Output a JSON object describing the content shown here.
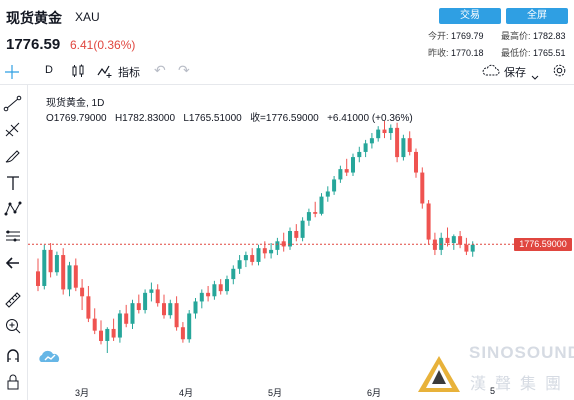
{
  "header": {
    "title": "现货黄金",
    "symbol": "XAU",
    "price": "1776.59",
    "change": "6.41(0.36%)",
    "buttons": {
      "trade": "交易",
      "fullscreen": "全屏"
    },
    "stats": {
      "today_open_label": "今开:",
      "today_open": "1769.79",
      "high_label": "最高价:",
      "high": "1782.83",
      "prev_close_label": "昨收:",
      "prev_close": "1770.18",
      "low_label": "最低价:",
      "low": "1765.51"
    }
  },
  "toolbar": {
    "interval": "D",
    "indicators_label": "指标",
    "save_label": "保存"
  },
  "chart": {
    "legend_name": "现货黄金, 1D",
    "legend_ohlc": "O1769.79000   H1782.83000   L1765.51000   收=1776.59000   +6.41000 (+0.36%)",
    "price_tag": "1776.59000",
    "x_labels": [
      "3月",
      "4月",
      "5月",
      "6月",
      "5"
    ],
    "watermark_en": "SINOSOUND",
    "watermark_cn": "漢聲集團"
  },
  "colors": {
    "up": "#26a69a",
    "down": "#ef5350",
    "accent": "#2f9fe3"
  },
  "chart_data": {
    "type": "candlestick",
    "close_last": 1776.59,
    "candles": [
      [
        1745,
        1760,
        1722,
        1728
      ],
      [
        1728,
        1776,
        1724,
        1770
      ],
      [
        1770,
        1778,
        1738,
        1744
      ],
      [
        1744,
        1768,
        1740,
        1764
      ],
      [
        1764,
        1772,
        1718,
        1724
      ],
      [
        1724,
        1756,
        1716,
        1752
      ],
      [
        1752,
        1760,
        1722,
        1726
      ],
      [
        1726,
        1736,
        1700,
        1716
      ],
      [
        1716,
        1728,
        1686,
        1690
      ],
      [
        1690,
        1702,
        1672,
        1676
      ],
      [
        1676,
        1688,
        1660,
        1664
      ],
      [
        1664,
        1680,
        1650,
        1678
      ],
      [
        1678,
        1690,
        1664,
        1668
      ],
      [
        1668,
        1700,
        1662,
        1696
      ],
      [
        1696,
        1706,
        1680,
        1684
      ],
      [
        1684,
        1712,
        1678,
        1708
      ],
      [
        1708,
        1718,
        1696,
        1700
      ],
      [
        1700,
        1724,
        1696,
        1720
      ],
      [
        1720,
        1732,
        1710,
        1724
      ],
      [
        1724,
        1730,
        1704,
        1708
      ],
      [
        1708,
        1718,
        1690,
        1694
      ],
      [
        1694,
        1712,
        1690,
        1708
      ],
      [
        1708,
        1716,
        1676,
        1680
      ],
      [
        1680,
        1686,
        1662,
        1666
      ],
      [
        1666,
        1700,
        1662,
        1696
      ],
      [
        1696,
        1714,
        1690,
        1710
      ],
      [
        1710,
        1724,
        1702,
        1720
      ],
      [
        1720,
        1728,
        1710,
        1716
      ],
      [
        1716,
        1734,
        1712,
        1730
      ],
      [
        1730,
        1736,
        1718,
        1722
      ],
      [
        1722,
        1740,
        1718,
        1736
      ],
      [
        1736,
        1752,
        1730,
        1748
      ],
      [
        1748,
        1764,
        1742,
        1758
      ],
      [
        1758,
        1768,
        1750,
        1764
      ],
      [
        1764,
        1772,
        1752,
        1756
      ],
      [
        1756,
        1776,
        1752,
        1772
      ],
      [
        1772,
        1780,
        1760,
        1766
      ],
      [
        1766,
        1778,
        1760,
        1770
      ],
      [
        1770,
        1784,
        1764,
        1780
      ],
      [
        1780,
        1790,
        1768,
        1774
      ],
      [
        1774,
        1796,
        1770,
        1792
      ],
      [
        1792,
        1800,
        1780,
        1784
      ],
      [
        1784,
        1808,
        1780,
        1804
      ],
      [
        1804,
        1818,
        1798,
        1814
      ],
      [
        1814,
        1826,
        1808,
        1812
      ],
      [
        1812,
        1836,
        1810,
        1832
      ],
      [
        1832,
        1844,
        1826,
        1838
      ],
      [
        1838,
        1856,
        1834,
        1852
      ],
      [
        1852,
        1868,
        1848,
        1864
      ],
      [
        1864,
        1876,
        1856,
        1860
      ],
      [
        1860,
        1882,
        1856,
        1878
      ],
      [
        1878,
        1890,
        1872,
        1884
      ],
      [
        1884,
        1898,
        1878,
        1894
      ],
      [
        1894,
        1906,
        1888,
        1900
      ],
      [
        1900,
        1914,
        1896,
        1910
      ],
      [
        1910,
        1920,
        1900,
        1906
      ],
      [
        1906,
        1916,
        1898,
        1912
      ],
      [
        1912,
        1918,
        1872,
        1878
      ],
      [
        1878,
        1904,
        1874,
        1900
      ],
      [
        1900,
        1908,
        1880,
        1884
      ],
      [
        1884,
        1888,
        1854,
        1860
      ],
      [
        1860,
        1866,
        1818,
        1824
      ],
      [
        1824,
        1828,
        1776,
        1782
      ],
      [
        1782,
        1790,
        1764,
        1770
      ],
      [
        1770,
        1790,
        1764,
        1784
      ],
      [
        1784,
        1796,
        1774,
        1778
      ],
      [
        1778,
        1788,
        1770,
        1786
      ],
      [
        1786,
        1792,
        1772,
        1776
      ],
      [
        1776,
        1784,
        1764,
        1768
      ],
      [
        1768,
        1780,
        1762,
        1776
      ]
    ],
    "x_labels": [
      "3月",
      "4月",
      "5月",
      "6月",
      "5"
    ]
  }
}
